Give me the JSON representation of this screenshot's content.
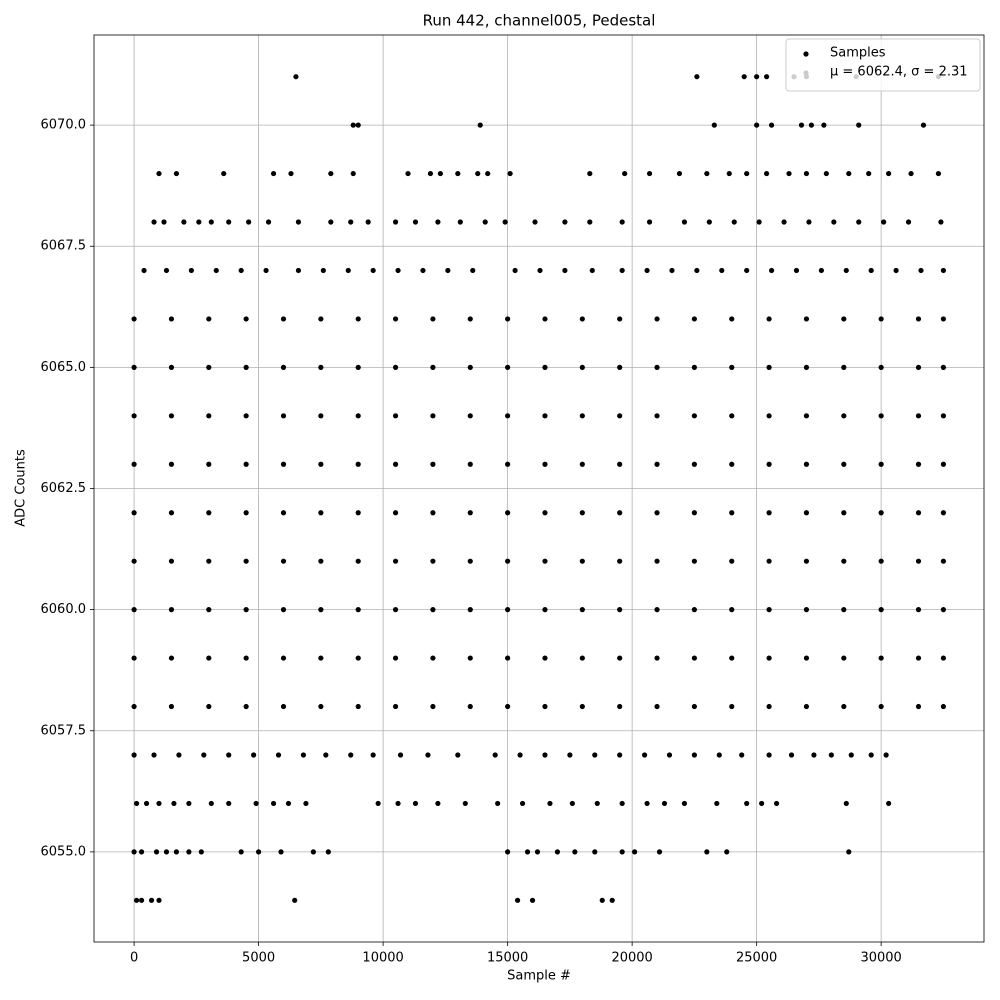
{
  "chart_data": {
    "type": "scatter",
    "title": "Run 442, channel005, Pedestal",
    "x_label": "Sample #",
    "y_label": "ADC Counts",
    "annotation": "μ = 6062.4, σ = 2.31",
    "annotation_color": "#cccccc",
    "xlim": [
      -1610,
      34130
    ],
    "ylim": [
      6053.14,
      6071.86
    ],
    "xticks": [
      0,
      5000,
      10000,
      15000,
      20000,
      25000,
      30000
    ],
    "yticks": [
      {
        "value": 6055,
        "label": "6055.0"
      },
      6057.5,
      {
        "value": 6060,
        "label": "6060.0"
      },
      6062.5,
      {
        "value": 6065,
        "label": "6065.0"
      },
      6067.5,
      {
        "value": 6070,
        "label": "6070.0"
      }
    ],
    "grid": true,
    "legend": "upper right",
    "series": [
      {
        "name": "Samples",
        "color": "#000000",
        "x": [
          0,
          1500,
          3000,
          4500,
          6000,
          7500,
          9000,
          10500,
          12000,
          13500,
          15000,
          16500,
          18000,
          19500,
          21000,
          22500,
          24000,
          25500,
          27000,
          28500,
          30000,
          31500,
          32500,
          0,
          1500,
          3000,
          4500,
          6000,
          7500,
          9000,
          10500,
          12000,
          13500,
          15000,
          16500,
          18000,
          19500,
          21000,
          22500,
          24000,
          25500,
          27000,
          28500,
          30000,
          31500,
          32500,
          0,
          1500,
          3000,
          4500,
          6000,
          7500,
          9000,
          10500,
          12000,
          13500,
          15000,
          16500,
          18000,
          19500,
          21000,
          22500,
          24000,
          25500,
          27000,
          28500,
          30000,
          31500,
          32500,
          0,
          1500,
          3000,
          4500,
          6000,
          7500,
          9000,
          10500,
          12000,
          13500,
          15000,
          16500,
          18000,
          19500,
          21000,
          22500,
          24000,
          25500,
          27000,
          28500,
          30000,
          31500,
          32500,
          0,
          1500,
          3000,
          4500,
          6000,
          7500,
          9000,
          10500,
          12000,
          13500,
          15000,
          16500,
          18000,
          19500,
          21000,
          22500,
          24000,
          25500,
          27000,
          28500,
          30000,
          31500,
          32500,
          0,
          1500,
          3000,
          4500,
          6000,
          7500,
          9000,
          10500,
          12000,
          13500,
          15000,
          16500,
          18000,
          19500,
          21000,
          22500,
          24000,
          25500,
          27000,
          28500,
          30000,
          31500,
          32500,
          0,
          1500,
          3000,
          4500,
          6000,
          7500,
          9000,
          10500,
          12000,
          13500,
          15000,
          16500,
          18000,
          19500,
          21000,
          22500,
          24000,
          25500,
          27000,
          28500,
          30000,
          31500,
          32500,
          0,
          1500,
          3000,
          4500,
          6000,
          7500,
          9000,
          10500,
          12000,
          13500,
          15000,
          16500,
          18000,
          19500,
          21000,
          22500,
          24000,
          25500,
          27000,
          28500,
          30000,
          31500,
          32500,
          0,
          1500,
          3000,
          4500,
          6000,
          7500,
          9000,
          10500,
          12000,
          13500,
          15000,
          16500,
          18000,
          19500,
          21000,
          22500,
          24000,
          25500,
          27000,
          28500,
          30000,
          31500,
          32500,
          100,
          300,
          700,
          1000,
          6450,
          15400,
          16000,
          18800,
          19200,
          0,
          300,
          900,
          1300,
          1700,
          2200,
          2700,
          4300,
          5000,
          5900,
          7200,
          7800,
          15000,
          15800,
          16200,
          17000,
          17700,
          18500,
          19600,
          20100,
          21100,
          23000,
          23800,
          28700,
          100,
          500,
          1000,
          1600,
          2200,
          3100,
          3800,
          4900,
          5600,
          6200,
          6900,
          9800,
          10600,
          11300,
          12200,
          13300,
          14600,
          15600,
          16700,
          17600,
          18600,
          19600,
          20600,
          21300,
          22100,
          23400,
          24600,
          25200,
          25800,
          28600,
          30300,
          0,
          800,
          1800,
          2800,
          3800,
          4800,
          5800,
          6800,
          7700,
          8700,
          9600,
          10700,
          11800,
          13000,
          14500,
          15500,
          16500,
          17500,
          18500,
          19500,
          20500,
          21500,
          22500,
          23500,
          24400,
          25500,
          26400,
          27300,
          28000,
          28800,
          29600,
          30200,
          400,
          1300,
          2300,
          3300,
          4300,
          5300,
          6600,
          7600,
          8600,
          9600,
          10600,
          11600,
          12600,
          13600,
          15300,
          16300,
          17300,
          18400,
          19600,
          20600,
          21600,
          22600,
          23600,
          24600,
          25600,
          26600,
          27600,
          28600,
          29600,
          30600,
          31600,
          32500,
          800,
          1200,
          2000,
          2600,
          3100,
          3800,
          4600,
          5400,
          6600,
          7900,
          8700,
          9400,
          10500,
          11300,
          12200,
          13100,
          14100,
          14900,
          16100,
          17300,
          18300,
          19600,
          20700,
          22100,
          23100,
          24100,
          25100,
          26100,
          27100,
          28100,
          29100,
          30100,
          31100,
          32400,
          1000,
          1700,
          3600,
          5600,
          6300,
          7900,
          8800,
          11000,
          11900,
          12300,
          13000,
          13800,
          14200,
          15100,
          18300,
          19700,
          20700,
          21900,
          23000,
          23900,
          24600,
          25400,
          26300,
          27000,
          27800,
          28700,
          29500,
          30300,
          31200,
          32300,
          8800,
          9000,
          13900,
          23300,
          25000,
          25600,
          26800,
          27200,
          27700,
          29100,
          31700,
          6500,
          22600,
          24500,
          25000,
          25400,
          26500,
          27000,
          29000,
          32300
        ],
        "values": [
          6058,
          6058,
          6058,
          6058,
          6058,
          6058,
          6058,
          6058,
          6058,
          6058,
          6058,
          6058,
          6058,
          6058,
          6058,
          6058,
          6058,
          6058,
          6058,
          6058,
          6058,
          6058,
          6058,
          6059,
          6059,
          6059,
          6059,
          6059,
          6059,
          6059,
          6059,
          6059,
          6059,
          6059,
          6059,
          6059,
          6059,
          6059,
          6059,
          6059,
          6059,
          6059,
          6059,
          6059,
          6059,
          6059,
          6060,
          6060,
          6060,
          6060,
          6060,
          6060,
          6060,
          6060,
          6060,
          6060,
          6060,
          6060,
          6060,
          6060,
          6060,
          6060,
          6060,
          6060,
          6060,
          6060,
          6060,
          6060,
          6060,
          6061,
          6061,
          6061,
          6061,
          6061,
          6061,
          6061,
          6061,
          6061,
          6061,
          6061,
          6061,
          6061,
          6061,
          6061,
          6061,
          6061,
          6061,
          6061,
          6061,
          6061,
          6061,
          6061,
          6062,
          6062,
          6062,
          6062,
          6062,
          6062,
          6062,
          6062,
          6062,
          6062,
          6062,
          6062,
          6062,
          6062,
          6062,
          6062,
          6062,
          6062,
          6062,
          6062,
          6062,
          6062,
          6062,
          6063,
          6063,
          6063,
          6063,
          6063,
          6063,
          6063,
          6063,
          6063,
          6063,
          6063,
          6063,
          6063,
          6063,
          6063,
          6063,
          6063,
          6063,
          6063,
          6063,
          6063,
          6063,
          6063,
          6064,
          6064,
          6064,
          6064,
          6064,
          6064,
          6064,
          6064,
          6064,
          6064,
          6064,
          6064,
          6064,
          6064,
          6064,
          6064,
          6064,
          6064,
          6064,
          6064,
          6064,
          6064,
          6064,
          6065,
          6065,
          6065,
          6065,
          6065,
          6065,
          6065,
          6065,
          6065,
          6065,
          6065,
          6065,
          6065,
          6065,
          6065,
          6065,
          6065,
          6065,
          6065,
          6065,
          6065,
          6065,
          6065,
          6066,
          6066,
          6066,
          6066,
          6066,
          6066,
          6066,
          6066,
          6066,
          6066,
          6066,
          6066,
          6066,
          6066,
          6066,
          6066,
          6066,
          6066,
          6066,
          6066,
          6066,
          6066,
          6066,
          6054,
          6054,
          6054,
          6054,
          6054,
          6054,
          6054,
          6054,
          6054,
          6055,
          6055,
          6055,
          6055,
          6055,
          6055,
          6055,
          6055,
          6055,
          6055,
          6055,
          6055,
          6055,
          6055,
          6055,
          6055,
          6055,
          6055,
          6055,
          6055,
          6055,
          6055,
          6055,
          6055,
          6056,
          6056,
          6056,
          6056,
          6056,
          6056,
          6056,
          6056,
          6056,
          6056,
          6056,
          6056,
          6056,
          6056,
          6056,
          6056,
          6056,
          6056,
          6056,
          6056,
          6056,
          6056,
          6056,
          6056,
          6056,
          6056,
          6056,
          6056,
          6056,
          6056,
          6056,
          6057,
          6057,
          6057,
          6057,
          6057,
          6057,
          6057,
          6057,
          6057,
          6057,
          6057,
          6057,
          6057,
          6057,
          6057,
          6057,
          6057,
          6057,
          6057,
          6057,
          6057,
          6057,
          6057,
          6057,
          6057,
          6057,
          6057,
          6057,
          6057,
          6057,
          6057,
          6057,
          6067,
          6067,
          6067,
          6067,
          6067,
          6067,
          6067,
          6067,
          6067,
          6067,
          6067,
          6067,
          6067,
          6067,
          6067,
          6067,
          6067,
          6067,
          6067,
          6067,
          6067,
          6067,
          6067,
          6067,
          6067,
          6067,
          6067,
          6067,
          6067,
          6067,
          6067,
          6067,
          6068,
          6068,
          6068,
          6068,
          6068,
          6068,
          6068,
          6068,
          6068,
          6068,
          6068,
          6068,
          6068,
          6068,
          6068,
          6068,
          6068,
          6068,
          6068,
          6068,
          6068,
          6068,
          6068,
          6068,
          6068,
          6068,
          6068,
          6068,
          6068,
          6068,
          6068,
          6068,
          6068,
          6068,
          6069,
          6069,
          6069,
          6069,
          6069,
          6069,
          6069,
          6069,
          6069,
          6069,
          6069,
          6069,
          6069,
          6069,
          6069,
          6069,
          6069,
          6069,
          6069,
          6069,
          6069,
          6069,
          6069,
          6069,
          6069,
          6069,
          6069,
          6069,
          6069,
          6069,
          6070,
          6070,
          6070,
          6070,
          6070,
          6070,
          6070,
          6070,
          6070,
          6070,
          6070,
          6071,
          6071,
          6071,
          6071,
          6071,
          6071,
          6071,
          6071,
          6071
        ]
      }
    ]
  }
}
